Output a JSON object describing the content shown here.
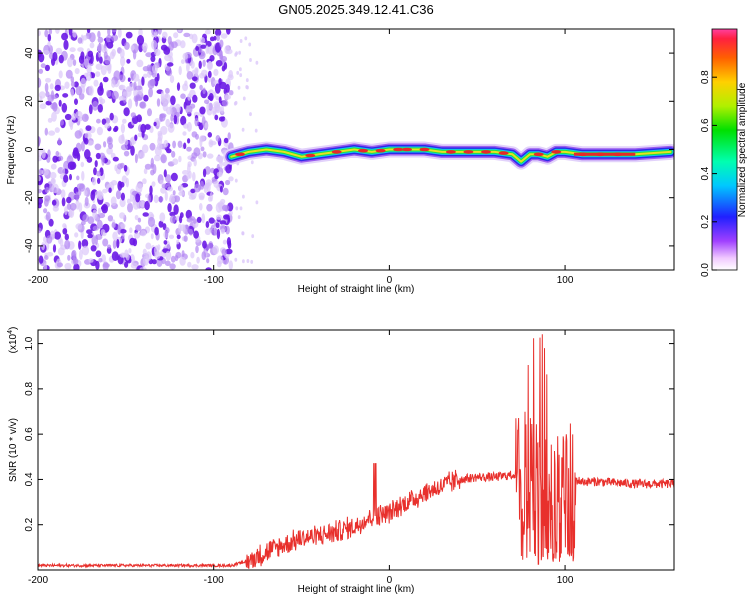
{
  "title": "GN05.2025.349.12.41.C36",
  "colors": {
    "snr_line": "#e8302c",
    "scatter": "#7a20e0",
    "axis": "#000000"
  },
  "chart_data": [
    {
      "type": "heatmap",
      "title": "GN05.2025.349.12.41.C36",
      "xlabel": "Height of straight line (km)",
      "ylabel": "Frequency (Hz)",
      "xlim": [
        -200,
        162
      ],
      "ylim": [
        -50,
        50
      ],
      "xticks": [
        -200,
        -100,
        0,
        100
      ],
      "xtick_labels": [
        "-200",
        "-100",
        "0",
        "100"
      ],
      "yticks": [
        -40,
        -20,
        0,
        20,
        40
      ],
      "ytick_labels": [
        "-40",
        "-20",
        "0",
        "20",
        "40"
      ],
      "noise_region_x": [
        -200,
        -90
      ],
      "signal_start_x": -90,
      "ridge": {
        "x": [
          -90,
          -80,
          -70,
          -60,
          -50,
          -40,
          -30,
          -20,
          -10,
          0,
          10,
          20,
          30,
          40,
          50,
          60,
          70,
          75,
          80,
          85,
          90,
          95,
          100,
          110,
          120,
          140,
          160
        ],
        "freq": [
          -3,
          -1,
          0,
          -1,
          -3,
          -2,
          -1,
          0,
          -1,
          0,
          0,
          0,
          -1,
          -1,
          -1,
          -1,
          -2,
          -5,
          -2,
          -2,
          -3,
          -1,
          -1,
          -2,
          -2,
          -2,
          -1
        ]
      },
      "colorbar": {
        "label": "Normalized spectral amplitude",
        "range": [
          0,
          1
        ],
        "ticks": [
          0.0,
          0.2,
          0.4,
          0.6,
          0.8
        ],
        "tick_labels": [
          "0.0",
          "0.2",
          "0.4",
          "0.6",
          "0.8"
        ]
      }
    },
    {
      "type": "line",
      "xlabel": "Height of straight line (km)",
      "ylabel": "SNR (10 * v/v)",
      "yscale_label": "(x10",
      "yscale_exp": "4",
      "xlim": [
        -200,
        162
      ],
      "ylim": [
        0,
        1.06
      ],
      "xticks": [
        -200,
        -100,
        0,
        100
      ],
      "xtick_labels": [
        "-200",
        "-100",
        "0",
        "100"
      ],
      "yticks": [
        0.2,
        0.4,
        0.6,
        0.8,
        1.0
      ],
      "ytick_labels": [
        "0.2",
        "0.4",
        "0.6",
        "0.8",
        "1.0"
      ],
      "series": [
        {
          "name": "SNR",
          "x": [
            -200,
            -150,
            -120,
            -90,
            -80,
            -70,
            -60,
            -50,
            -40,
            -30,
            -20,
            -10,
            0,
            10,
            20,
            30,
            40,
            50,
            60,
            70,
            75,
            80,
            85,
            90,
            95,
            100,
            105,
            110,
            120,
            140,
            162
          ],
          "y": [
            0.02,
            0.02,
            0.02,
            0.02,
            0.04,
            0.08,
            0.11,
            0.14,
            0.15,
            0.17,
            0.19,
            0.24,
            0.25,
            0.3,
            0.34,
            0.37,
            0.4,
            0.41,
            0.41,
            0.42,
            0.43,
            0.42,
            0.4,
            0.39,
            0.35,
            0.33,
            0.4,
            0.39,
            0.39,
            0.38,
            0.38
          ]
        }
      ]
    }
  ]
}
